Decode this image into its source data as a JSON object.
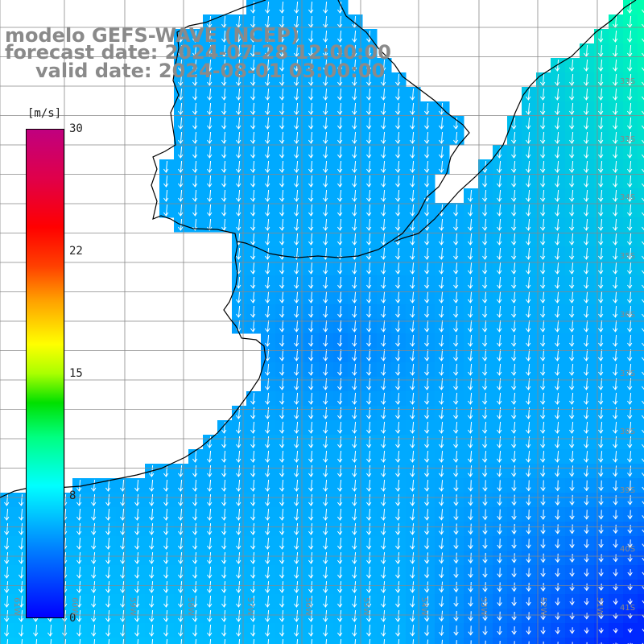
{
  "title": {
    "line1": "modelo GEFS-WAVE (NCEP)",
    "line2": "forecast date: 2024-07-28 12:00:00",
    "line3": "valid date: 2024-08-01 03:00:00"
  },
  "colorbar": {
    "unit": "[m/s]",
    "ticks": [
      "30",
      "22",
      "15",
      "8",
      "0"
    ],
    "range": [
      0,
      30
    ]
  },
  "grid": {
    "lat_labels": [
      "33S",
      "33S",
      "34S",
      "35S",
      "36S",
      "37S",
      "38S",
      "39S",
      "40S",
      "41S"
    ],
    "lon_labels": [
      "61W",
      "60W",
      "59W",
      "58W",
      "57W",
      "56W",
      "55W",
      "54W",
      "53W",
      "52W",
      "51W"
    ]
  },
  "colors": {
    "land": "#ffffff",
    "coast": "#000000",
    "grid": "#888888",
    "arrow": "#ffffff",
    "wind_low": "#0000ff",
    "wind_mid": "#00a8ff",
    "wind_high": "#00ffb0"
  },
  "map": {
    "projection": "lat-lon",
    "region": "Rio de la Plata / southern Brazil coast, South Atlantic",
    "vectors": "white wind arrows, mostly pointing south-southwest"
  }
}
